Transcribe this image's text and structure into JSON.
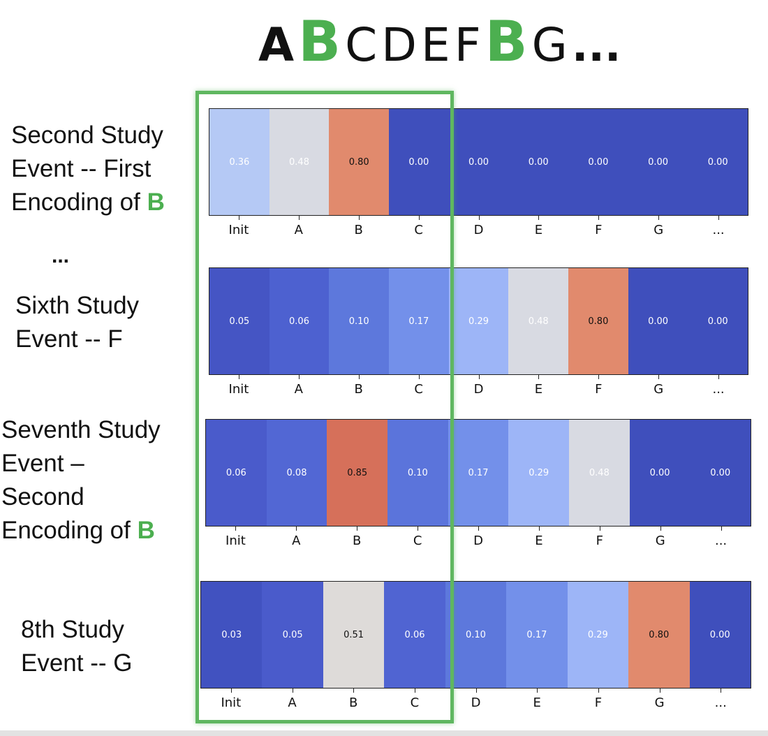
{
  "sequence": {
    "letters": [
      {
        "text": "A",
        "style": "bold"
      },
      {
        "text": "B",
        "style": "accent"
      },
      {
        "text": "C",
        "style": "normal"
      },
      {
        "text": "D",
        "style": "normal"
      },
      {
        "text": "E",
        "style": "normal"
      },
      {
        "text": "F",
        "style": "normal"
      },
      {
        "text": "B",
        "style": "accent"
      },
      {
        "text": "G",
        "style": "normal"
      }
    ],
    "ellipsis": "...",
    "accent_color": "#4caf50"
  },
  "between_rows_ellipsis": "...",
  "rows": [
    {
      "label_lines": [
        "Second Study",
        "Event -- First",
        "Encoding of "
      ],
      "label_highlight": "B",
      "labels": [
        "Init",
        "A",
        "B",
        "C",
        "D",
        "E",
        "F",
        "G",
        "..."
      ],
      "values": [
        "0.36",
        "0.48",
        "0.80",
        "0.00",
        "0.00",
        "0.00",
        "0.00",
        "0.00",
        "0.00"
      ],
      "colors": [
        "#b5c9f5",
        "#d8dae2",
        "#e18a6d",
        "#3f4fbc",
        "#3f4fbc",
        "#3f4fbc",
        "#3f4fbc",
        "#3f4fbc",
        "#3f4fbc"
      ],
      "text_colors": [
        "#ffffff",
        "#ffffff",
        "#111111",
        "#ffffff",
        "#ffffff",
        "#ffffff",
        "#ffffff",
        "#ffffff",
        "#ffffff"
      ]
    },
    {
      "label_lines": [
        "Sixth Study",
        "Event -- F"
      ],
      "label_highlight": "",
      "labels": [
        "Init",
        "A",
        "B",
        "C",
        "D",
        "E",
        "F",
        "G",
        "..."
      ],
      "values": [
        "0.05",
        "0.06",
        "0.10",
        "0.17",
        "0.29",
        "0.48",
        "0.80",
        "0.00",
        "0.00"
      ],
      "colors": [
        "#4555c4",
        "#4d61d0",
        "#5d78dc",
        "#7390ea",
        "#9db5f7",
        "#d8dae2",
        "#e18a6d",
        "#3f4fbc",
        "#3f4fbc"
      ],
      "text_colors": [
        "#ffffff",
        "#ffffff",
        "#ffffff",
        "#ffffff",
        "#ffffff",
        "#ffffff",
        "#111111",
        "#ffffff",
        "#ffffff"
      ]
    },
    {
      "label_lines": [
        "Seventh Study",
        "Event –",
        "Second",
        "Encoding of "
      ],
      "label_highlight": "B",
      "labels": [
        "Init",
        "A",
        "B",
        "C",
        "D",
        "E",
        "F",
        "G",
        "..."
      ],
      "values": [
        "0.06",
        "0.08",
        "0.85",
        "0.10",
        "0.17",
        "0.29",
        "0.48",
        "0.00",
        "0.00"
      ],
      "colors": [
        "#4a5bcb",
        "#5267d4",
        "#d6705a",
        "#5b74db",
        "#7390ea",
        "#9db5f7",
        "#d8dae2",
        "#3f4fbc",
        "#3f4fbc"
      ],
      "text_colors": [
        "#ffffff",
        "#ffffff",
        "#111111",
        "#ffffff",
        "#ffffff",
        "#ffffff",
        "#ffffff",
        "#ffffff",
        "#ffffff"
      ]
    },
    {
      "label_lines": [
        "8th Study",
        "Event -- G"
      ],
      "label_highlight": "",
      "labels": [
        "Init",
        "A",
        "B",
        "C",
        "D",
        "E",
        "F",
        "G",
        "..."
      ],
      "values": [
        "0.03",
        "0.05",
        "0.51",
        "0.06",
        "0.10",
        "0.17",
        "0.29",
        "0.80",
        "0.00"
      ],
      "colors": [
        "#4152c0",
        "#4a5bcb",
        "#dedbd9",
        "#5064d2",
        "#5d78dc",
        "#7390ea",
        "#9db5f7",
        "#e18a6d",
        "#3f4fbc"
      ],
      "text_colors": [
        "#ffffff",
        "#ffffff",
        "#111111",
        "#ffffff",
        "#ffffff",
        "#ffffff",
        "#ffffff",
        "#111111",
        "#ffffff"
      ]
    }
  ]
}
